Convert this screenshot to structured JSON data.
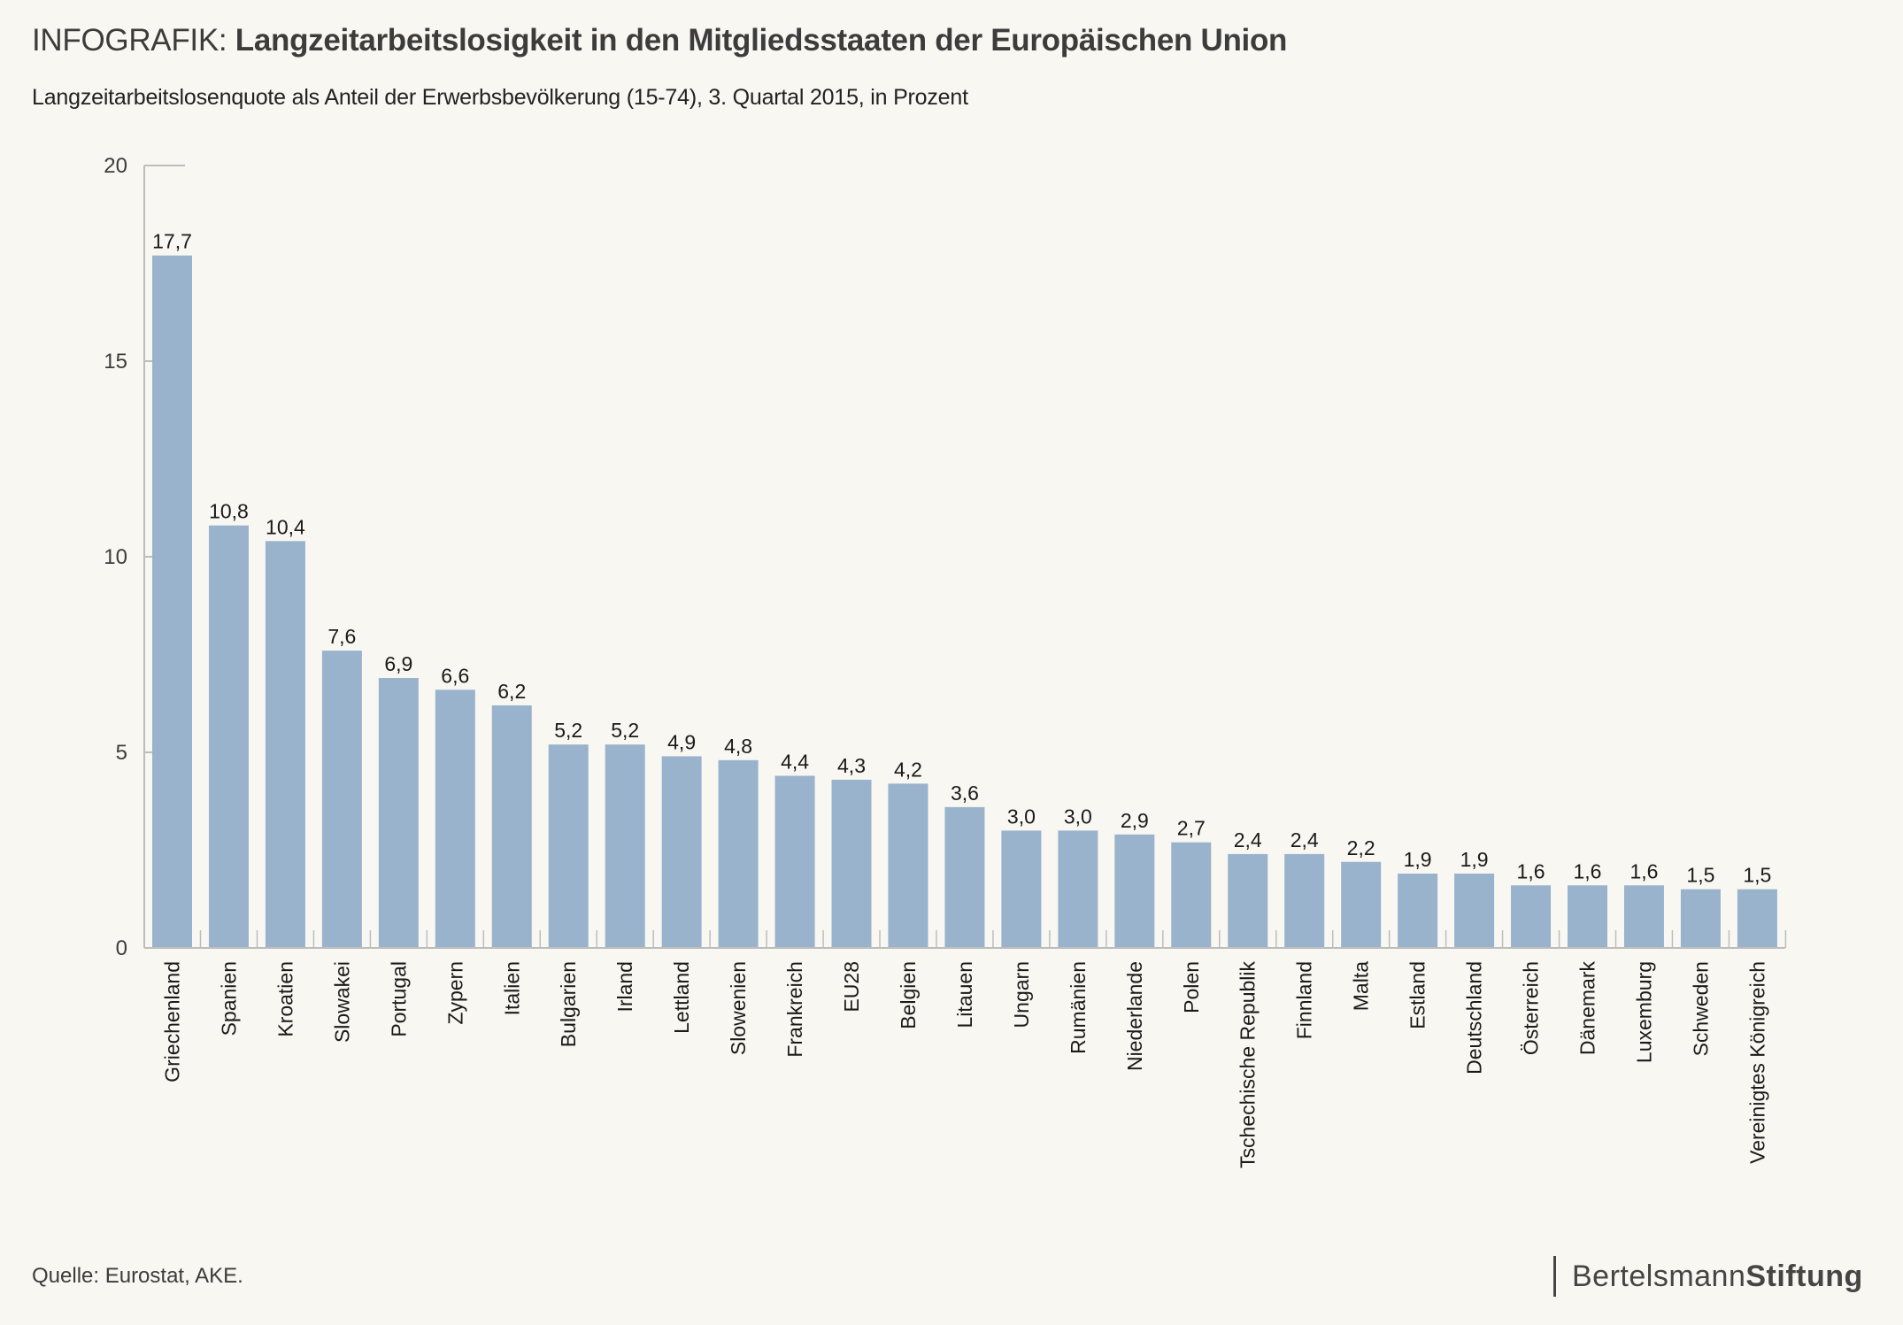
{
  "header": {
    "title_prefix": "INFOGRAFIK:",
    "title_main": "Langzeitarbeitslosigkeit in den Mitgliedsstaaten der Europäischen Union",
    "subtitle": "Langzeitarbeitslosenquote als Anteil der Erwerbsbevölkerung (15-74), 3. Quartal 2015, in Prozent"
  },
  "footer": {
    "source": "Quelle: Eurostat, AKE.",
    "logo_regular": "Bertelsmann",
    "logo_bold": "Stiftung"
  },
  "colors": {
    "background": "#f8f7f2",
    "bar": "#99b3cc",
    "axis": "#bdbdbd",
    "text": "#1a1a1a"
  },
  "chart_data": {
    "type": "bar",
    "title": "Langzeitarbeitslosigkeit in den Mitgliedsstaaten der Europäischen Union",
    "subtitle": "Langzeitarbeitslosenquote als Anteil der Erwerbsbevölkerung (15-74), 3. Quartal 2015, in Prozent",
    "xlabel": "",
    "ylabel": "",
    "ylim": [
      0,
      20
    ],
    "yticks": [
      0,
      5,
      10,
      15,
      20
    ],
    "grid": false,
    "legend": "none",
    "categories": [
      "Griechenland",
      "Spanien",
      "Kroatien",
      "Slowakei",
      "Portugal",
      "Zypern",
      "Italien",
      "Bulgarien",
      "Irland",
      "Lettland",
      "Slowenien",
      "Frankreich",
      "EU28",
      "Belgien",
      "Litauen",
      "Ungarn",
      "Rumänien",
      "Niederlande",
      "Polen",
      "Tschechische Republik",
      "Finnland",
      "Malta",
      "Estland",
      "Deutschland",
      "Österreich",
      "Dänemark",
      "Luxemburg",
      "Schweden",
      "Vereinigtes Königreich"
    ],
    "values": [
      17.7,
      10.8,
      10.4,
      7.6,
      6.9,
      6.6,
      6.2,
      5.2,
      5.2,
      4.9,
      4.8,
      4.4,
      4.3,
      4.2,
      3.6,
      3.0,
      3.0,
      2.9,
      2.7,
      2.4,
      2.4,
      2.2,
      1.9,
      1.9,
      1.6,
      1.6,
      1.6,
      1.5,
      1.5
    ],
    "value_labels": [
      "17,7",
      "10,8",
      "10,4",
      "7,6",
      "6,9",
      "6,6",
      "6,2",
      "5,2",
      "5,2",
      "4,9",
      "4,8",
      "4,4",
      "4,3",
      "4,2",
      "3,6",
      "3,0",
      "3,0",
      "2,9",
      "2,7",
      "2,4",
      "2,4",
      "2,2",
      "1,9",
      "1,9",
      "1,6",
      "1,6",
      "1,6",
      "1,5",
      "1,5"
    ]
  }
}
